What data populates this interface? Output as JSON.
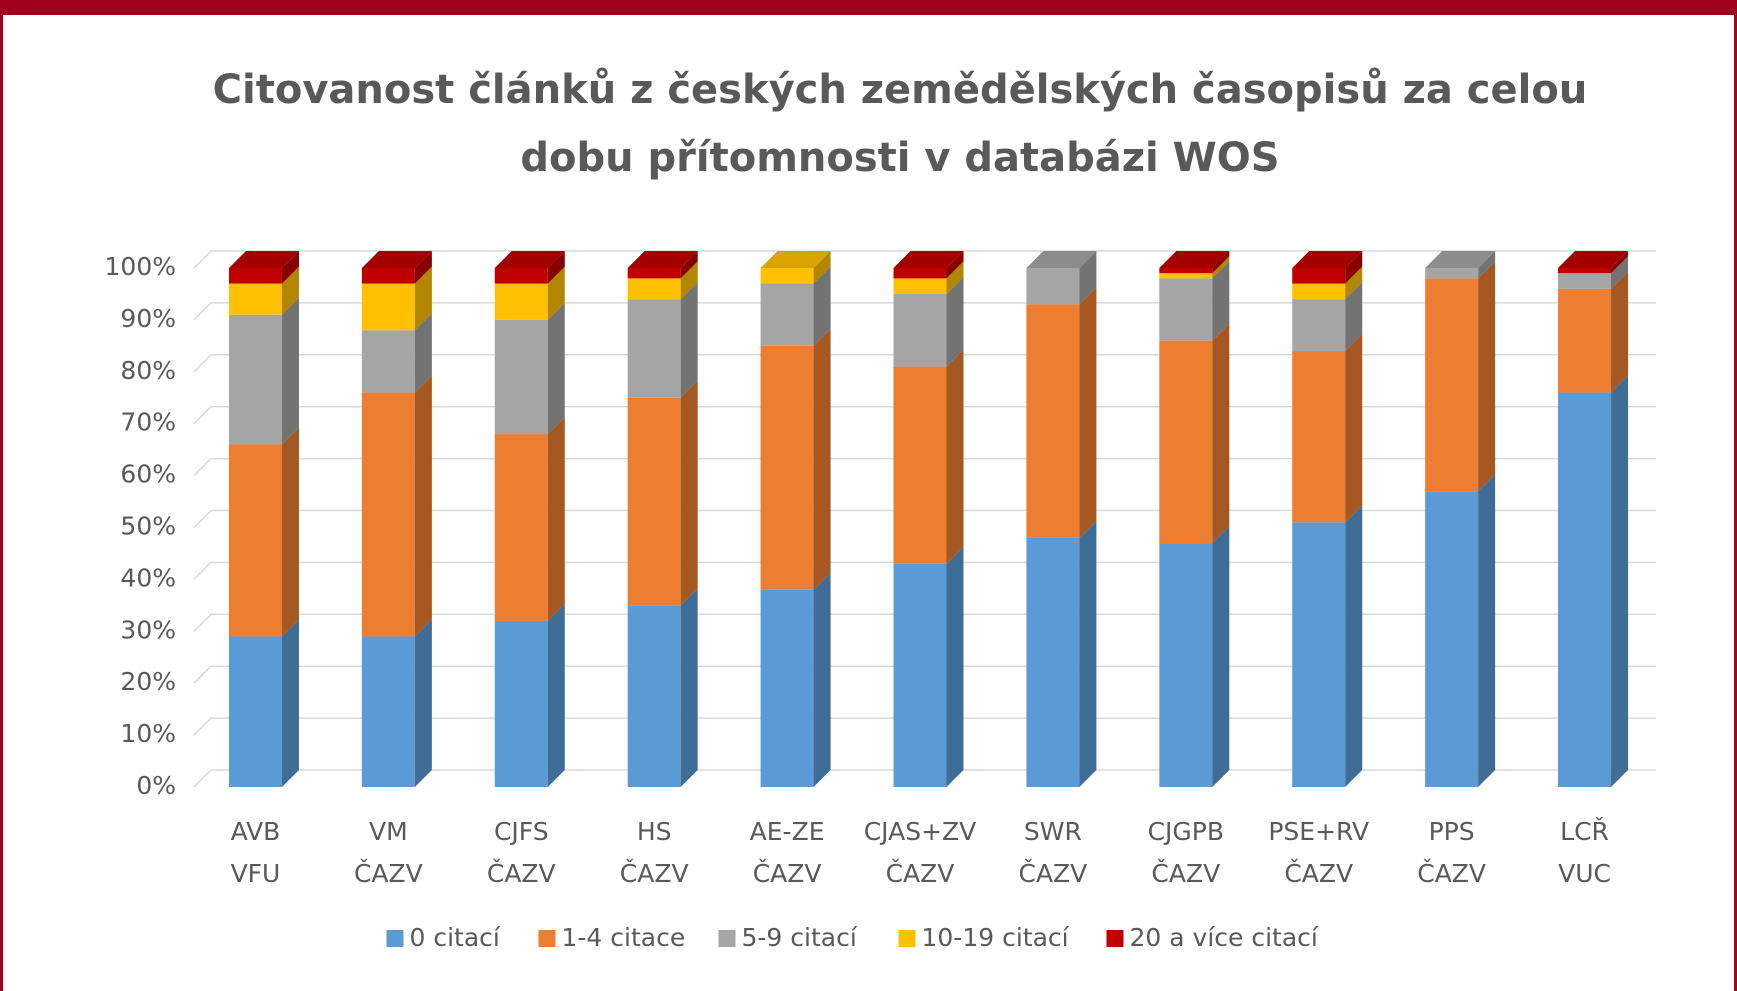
{
  "chart_data": {
    "type": "stacked_bar_3d",
    "title": [
      "Citovanost článků z českých zemědělských časopisů za celou",
      "dobu přítomnosti v databázi WOS"
    ],
    "categories": [
      [
        "AVB",
        "VFU"
      ],
      [
        "VM",
        "ČAZV"
      ],
      [
        "CJFS",
        "ČAZV"
      ],
      [
        "HS",
        "ČAZV"
      ],
      [
        "AE-ZE",
        "ČAZV"
      ],
      [
        "CJAS+ZV",
        "ČAZV"
      ],
      [
        "SWR",
        "ČAZV"
      ],
      [
        "CJGPB",
        "ČAZV"
      ],
      [
        "PSE+RV",
        "ČAZV"
      ],
      [
        "PPS",
        "ČAZV"
      ],
      [
        "LCŘ",
        "VUC"
      ]
    ],
    "series": [
      {
        "name": "0 citací",
        "color": "#5b9bd5",
        "values": [
          29,
          29,
          32,
          35,
          38,
          43,
          48,
          47,
          51,
          57,
          76
        ]
      },
      {
        "name": "1-4 citace",
        "color": "#ed7d31",
        "values": [
          37,
          47,
          36,
          40,
          47,
          38,
          45,
          39,
          33,
          41,
          20
        ]
      },
      {
        "name": "5-9 citací",
        "color": "#a5a5a5",
        "values": [
          25,
          12,
          22,
          19,
          12,
          14,
          7,
          12,
          10,
          2,
          3
        ]
      },
      {
        "name": "10-19 citací",
        "color": "#ffc000",
        "values": [
          6,
          9,
          7,
          4,
          3,
          3,
          0,
          1,
          3,
          0,
          0
        ]
      },
      {
        "name": "20 a více citací",
        "color": "#c00000",
        "values": [
          3,
          3,
          3,
          2,
          0,
          2,
          0,
          1,
          3,
          0,
          1
        ]
      }
    ],
    "ylim": [
      0,
      100
    ],
    "yticks": [
      {
        "value": 0,
        "label": "0%"
      },
      {
        "value": 10,
        "label": "10%"
      },
      {
        "value": 20,
        "label": "20%"
      },
      {
        "value": 30,
        "label": "30%"
      },
      {
        "value": 40,
        "label": "40%"
      },
      {
        "value": 50,
        "label": "50%"
      },
      {
        "value": 60,
        "label": "60%"
      },
      {
        "value": 70,
        "label": "70%"
      },
      {
        "value": 80,
        "label": "80%"
      },
      {
        "value": 90,
        "label": "90%"
      },
      {
        "value": 100,
        "label": "100%"
      }
    ],
    "grid": true,
    "legend": "bottom"
  }
}
